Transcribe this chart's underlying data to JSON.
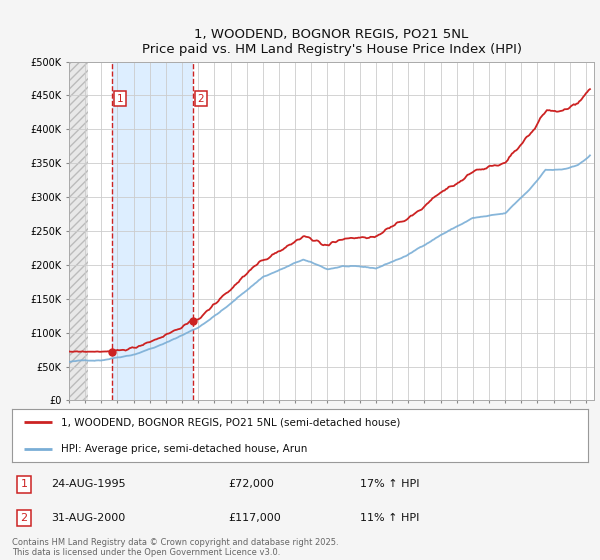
{
  "title": "1, WOODEND, BOGNOR REGIS, PO21 5NL",
  "subtitle": "Price paid vs. HM Land Registry's House Price Index (HPI)",
  "ylim": [
    0,
    500000
  ],
  "yticks": [
    0,
    50000,
    100000,
    150000,
    200000,
    250000,
    300000,
    350000,
    400000,
    450000,
    500000
  ],
  "ytick_labels": [
    "£0",
    "£50K",
    "£100K",
    "£150K",
    "£200K",
    "£250K",
    "£300K",
    "£350K",
    "£400K",
    "£450K",
    "£500K"
  ],
  "hpi_color": "#7aaed6",
  "price_color": "#cc2222",
  "transaction1": {
    "label": "1",
    "date": "24-AUG-1995",
    "price": 72000,
    "hpi_change": "17% ↑ HPI"
  },
  "transaction2": {
    "label": "2",
    "date": "31-AUG-2000",
    "price": 117000,
    "hpi_change": "11% ↑ HPI"
  },
  "legend_line1": "1, WOODEND, BOGNOR REGIS, PO21 5NL (semi-detached house)",
  "legend_line2": "HPI: Average price, semi-detached house, Arun",
  "footnote": "Contains HM Land Registry data © Crown copyright and database right 2025.\nThis data is licensed under the Open Government Licence v3.0.",
  "vline1_x": 1995.65,
  "vline2_x": 2000.66,
  "xmin": 1993.0,
  "xmax": 2025.5,
  "hatch_end_x": 1993.65,
  "shade_color": "#ddeeff"
}
